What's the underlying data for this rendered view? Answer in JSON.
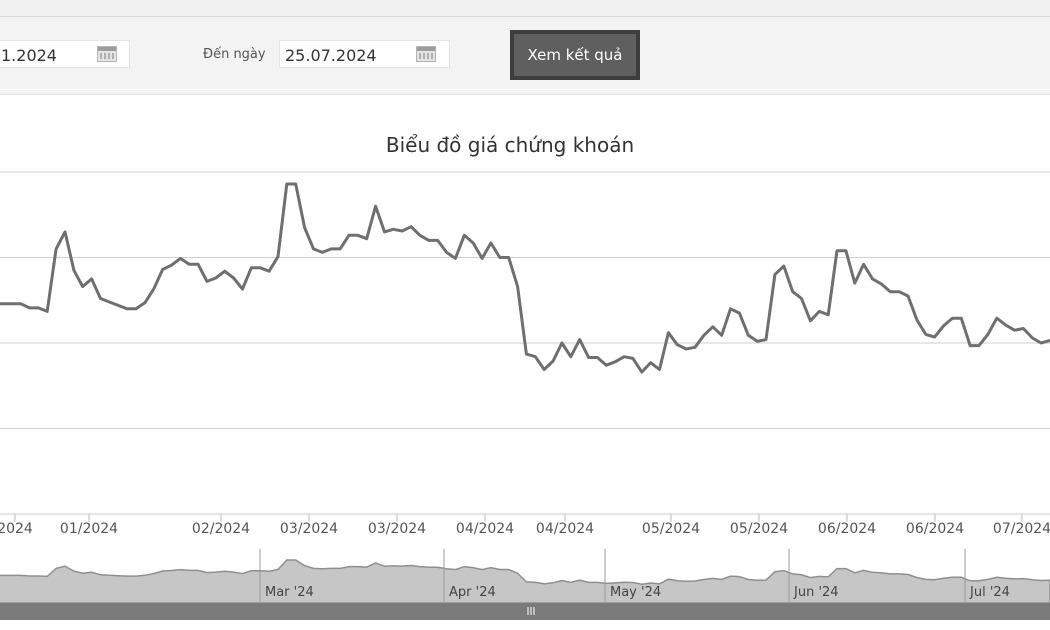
{
  "filter": {
    "from_value": "1.2024",
    "to_label": "Đến ngày",
    "to_value": "25.07.2024",
    "submit_label": "Xem kết quả"
  },
  "icons": {
    "calendar": "calendar-icon",
    "scroll_handle": "grip-icon"
  },
  "colors": {
    "line": "#6f6f6f",
    "grid": "#cfcfcf",
    "navigator_fill": "#c6c6c6",
    "scrollbar": "#7b7b7b"
  },
  "chart_data": {
    "type": "line",
    "title": "Biểu đồ giá chứng khoán",
    "xlabel": "",
    "ylabel": "",
    "grid": true,
    "x_tick_labels": [
      "2024",
      "01/2024",
      "02/2024",
      "03/2024",
      "03/2024",
      "04/2024",
      "04/2024",
      "05/2024",
      "05/2024",
      "06/2024",
      "06/2024",
      "07/2024"
    ],
    "y_range": [
      0,
      4
    ],
    "y_gridlines": [
      4,
      3,
      2,
      1,
      0
    ],
    "series": [
      {
        "values": [
          2.46,
          2.46,
          2.46,
          2.46,
          2.41,
          2.41,
          2.37,
          3.1,
          3.3,
          2.85,
          2.66,
          2.75,
          2.52,
          2.48,
          2.44,
          2.4,
          2.4,
          2.47,
          2.63,
          2.86,
          2.91,
          2.99,
          2.92,
          2.92,
          2.72,
          2.76,
          2.84,
          2.76,
          2.63,
          2.88,
          2.88,
          2.84,
          3.01,
          3.86,
          3.86,
          3.35,
          3.1,
          3.06,
          3.1,
          3.1,
          3.26,
          3.26,
          3.22,
          3.6,
          3.3,
          3.33,
          3.31,
          3.36,
          3.26,
          3.2,
          3.2,
          3.06,
          2.99,
          3.26,
          3.17,
          2.99,
          3.17,
          3.0,
          3.0,
          2.66,
          1.87,
          1.84,
          1.69,
          1.79,
          2.0,
          1.84,
          2.04,
          1.83,
          1.83,
          1.74,
          1.78,
          1.84,
          1.82,
          1.66,
          1.77,
          1.69,
          2.12,
          1.98,
          1.93,
          1.95,
          2.09,
          2.19,
          2.09,
          2.4,
          2.35,
          2.09,
          2.02,
          2.04,
          2.8,
          2.9,
          2.6,
          2.52,
          2.26,
          2.37,
          2.33,
          3.08,
          3.08,
          2.7,
          2.92,
          2.75,
          2.69,
          2.6,
          2.6,
          2.55,
          2.27,
          2.1,
          2.07,
          2.2,
          2.29,
          2.29,
          1.97,
          1.97,
          2.1,
          2.29,
          2.21,
          2.15,
          2.17,
          2.06,
          2.0,
          2.03
        ]
      }
    ],
    "navigator": {
      "labels": [
        "Mar '24",
        "Apr '24",
        "May '24",
        "Jun '24",
        "Jul '24"
      ]
    }
  }
}
